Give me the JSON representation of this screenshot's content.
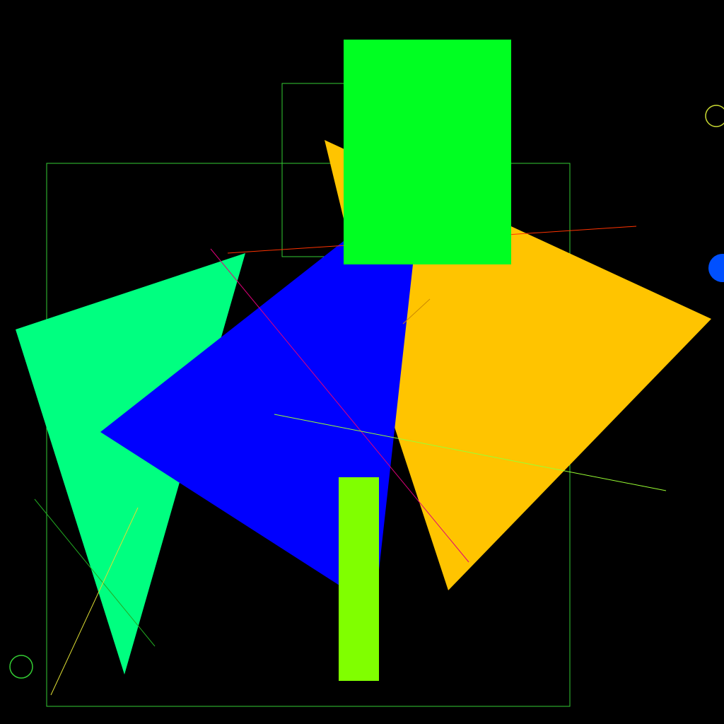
{
  "canvas": {
    "background": "#000000"
  },
  "shapes": {
    "orange_quad": {
      "fill": "#FFC400"
    },
    "teal_triangle": {
      "fill": "#00FF80"
    },
    "blue_quad": {
      "fill": "#0000FF"
    },
    "green_rect": {
      "fill": "#00FF22"
    },
    "lime_bar": {
      "fill": "#80FF00"
    },
    "outline_rect_large": {
      "stroke": "#33CC33"
    },
    "outline_rect_small": {
      "stroke": "#33CC33"
    },
    "blue_dot": {
      "fill": "#0050FF"
    },
    "yellow_ring": {
      "stroke": "#CCDD33"
    },
    "green_ring": {
      "stroke": "#33CC33"
    }
  },
  "lines": {
    "red_line": {
      "stroke": "#FF3300"
    },
    "magenta_line": {
      "stroke": "#E0007A"
    },
    "yellowgreen_line": {
      "stroke": "#99FF33"
    },
    "green_diag_line": {
      "stroke": "#22AA22"
    },
    "yellow_diag_line": {
      "stroke": "#DDDD33"
    },
    "orange_short_line": {
      "stroke": "#CC8800"
    }
  }
}
